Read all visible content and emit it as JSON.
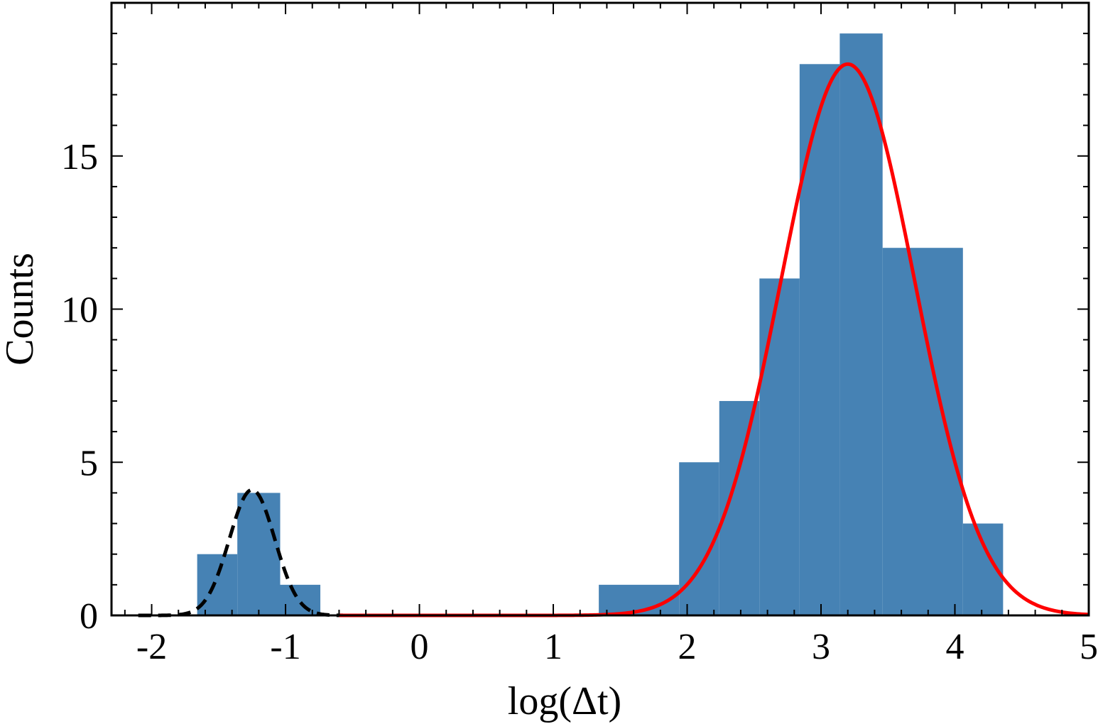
{
  "chart_data": {
    "type": "bar",
    "xlabel": "log(Δt)",
    "ylabel": "Counts",
    "xlim": [
      -2.3,
      5.0
    ],
    "ylim": [
      0,
      20
    ],
    "x_ticks": [
      -2,
      -1,
      0,
      1,
      2,
      3,
      4,
      5
    ],
    "x_tick_labels": [
      "-2",
      "-1",
      "0",
      "1",
      "2",
      "3",
      "4",
      "5"
    ],
    "y_ticks": [
      0,
      5,
      10,
      15
    ],
    "y_tick_labels": [
      "0",
      "5",
      "10",
      "15"
    ],
    "grid": false,
    "colors": {
      "bars": "#4682b4",
      "fit_main": "#ff0000",
      "fit_secondary": "#000000"
    },
    "histogram": {
      "bins": [
        {
          "x0": -1.66,
          "x1": -1.36,
          "count": 2
        },
        {
          "x0": -1.36,
          "x1": -1.04,
          "count": 4
        },
        {
          "x0": -1.04,
          "x1": -0.74,
          "count": 1
        },
        {
          "x0": 1.34,
          "x1": 1.94,
          "count": 1
        },
        {
          "x0": 1.94,
          "x1": 2.24,
          "count": 5
        },
        {
          "x0": 2.24,
          "x1": 2.54,
          "count": 7
        },
        {
          "x0": 2.54,
          "x1": 2.84,
          "count": 11
        },
        {
          "x0": 2.84,
          "x1": 3.14,
          "count": 18
        },
        {
          "x0": 3.14,
          "x1": 3.46,
          "count": 19
        },
        {
          "x0": 3.46,
          "x1": 4.06,
          "count": 12
        },
        {
          "x0": 4.06,
          "x1": 4.36,
          "count": 3
        }
      ]
    },
    "fits": [
      {
        "style": "dashed",
        "color": "#000000",
        "amplitude": 4.1,
        "mean": -1.25,
        "sigma": 0.17,
        "x_range": [
          -2.1,
          -0.4
        ]
      },
      {
        "style": "solid",
        "color": "#ff0000",
        "amplitude": 18.0,
        "mean": 3.2,
        "sigma": 0.5,
        "x_range": [
          -0.6,
          5.0
        ]
      }
    ]
  }
}
